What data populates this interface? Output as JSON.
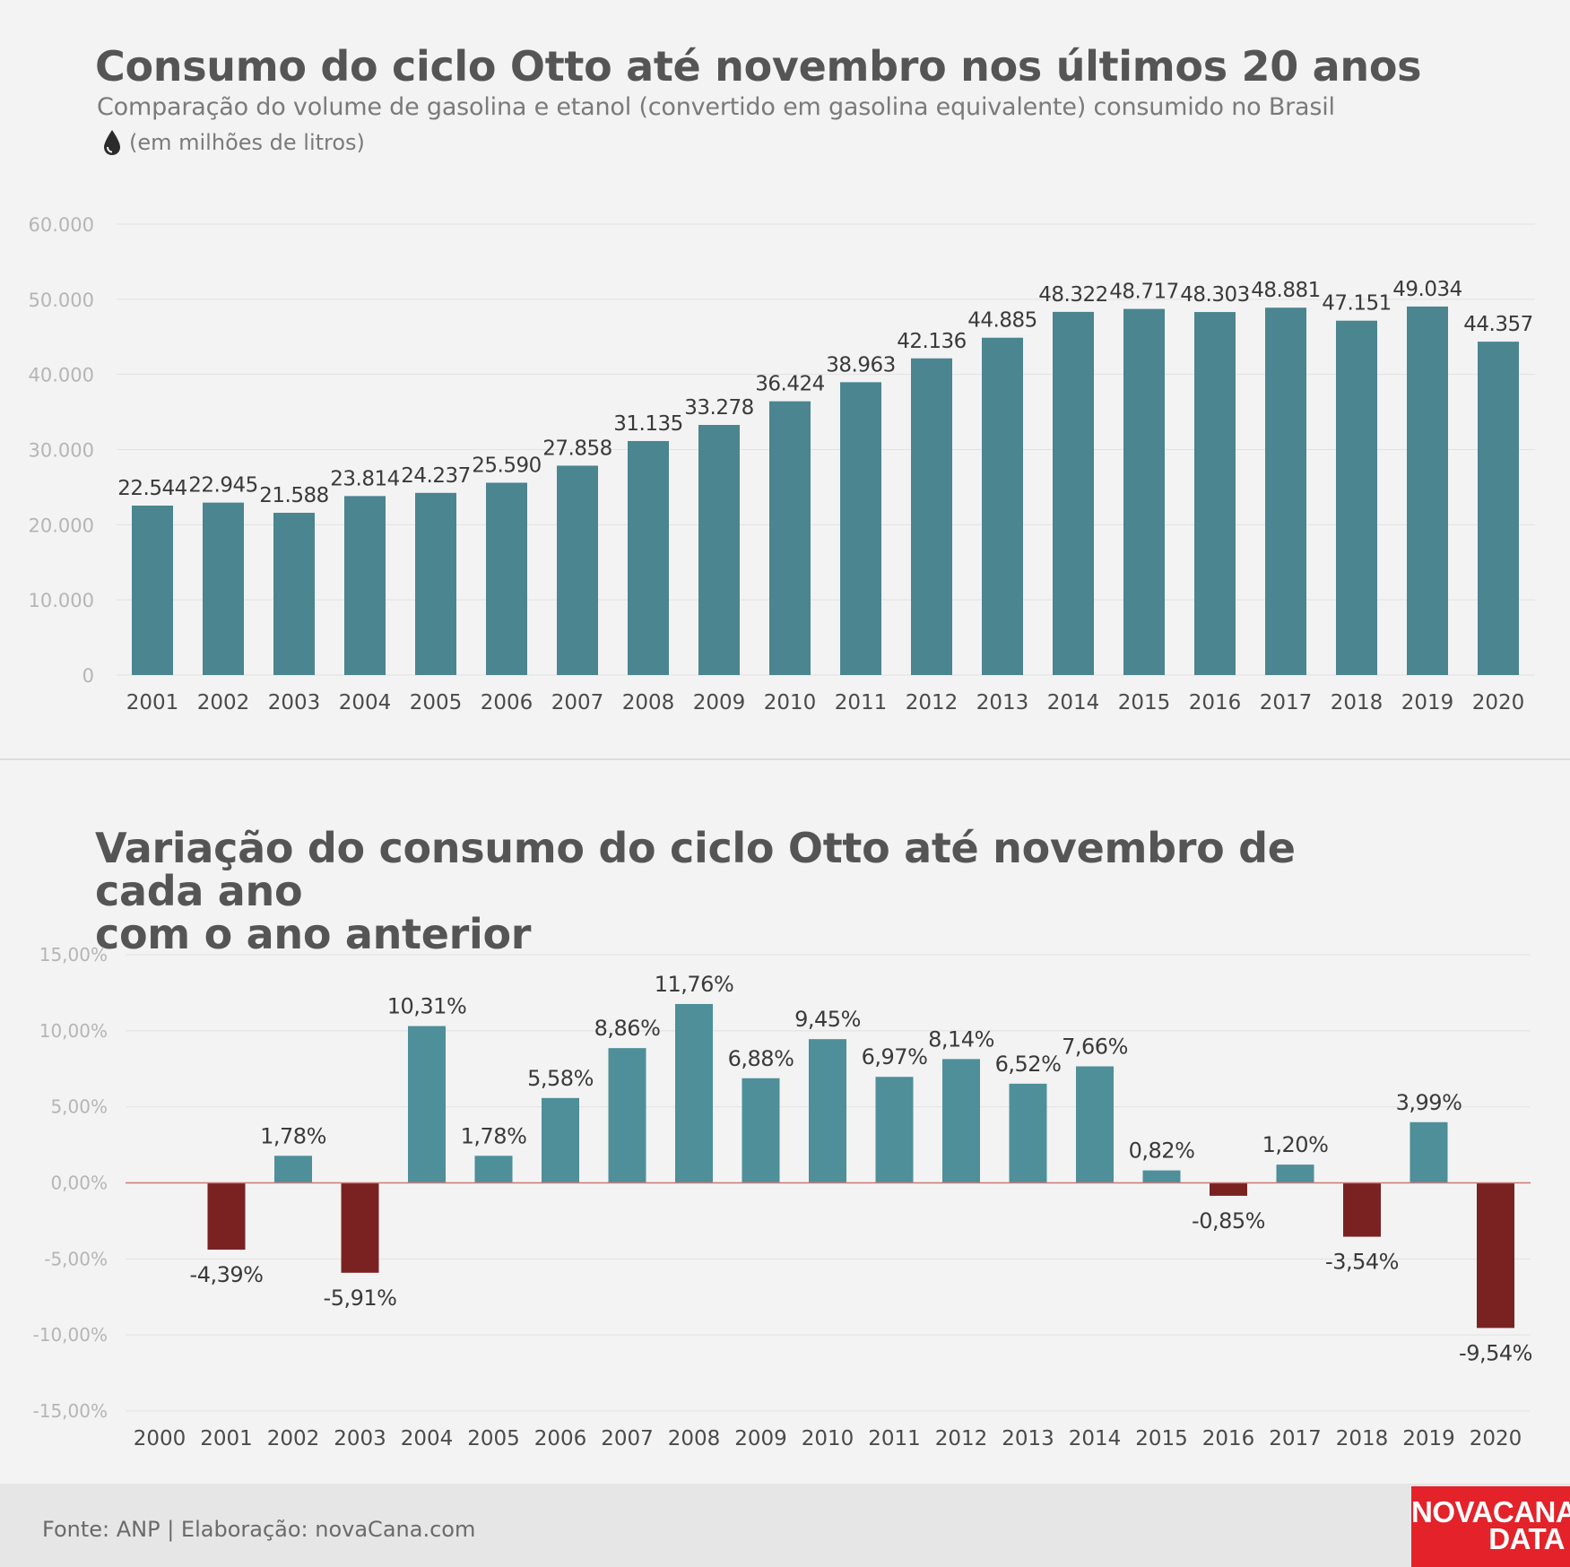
{
  "header": {
    "title": "Consumo do ciclo Otto até novembro nos últimos 20 anos",
    "subtitle": "Comparação do volume de gasolina e etanol (convertido em gasolina equivalente) consumido no Brasil",
    "unit": "(em milhões de litros)",
    "unit_icon": "drop-icon"
  },
  "section2": {
    "title_line1": "Variação do consumo do ciclo Otto até novembro de cada ano",
    "title_line2": "com o ano anterior"
  },
  "footer": {
    "source": "Fonte: ANP | Elaboração: novaCana.com",
    "logo_line1": "NOVACANA",
    "logo_line2": "DATA"
  },
  "colors": {
    "bar": "#4a8590",
    "bar_positive": "#4e8f99",
    "bar_negative": "#7a2222",
    "zero_line": "#c97a7a",
    "logo_bg": "#e3222a"
  },
  "chart_data": [
    {
      "type": "bar",
      "categories": [
        "2001",
        "2002",
        "2003",
        "2004",
        "2005",
        "2006",
        "2007",
        "2008",
        "2009",
        "2010",
        "2011",
        "2012",
        "2013",
        "2014",
        "2015",
        "2016",
        "2017",
        "2018",
        "2019",
        "2020"
      ],
      "values": [
        22544,
        22945,
        21588,
        23814,
        24237,
        25590,
        27858,
        31135,
        33278,
        36424,
        38963,
        42136,
        44885,
        48322,
        48717,
        48303,
        48881,
        47151,
        49034,
        44357
      ],
      "data_labels": [
        "22.544",
        "22.945",
        "21.588",
        "23.814",
        "24.237",
        "25.590",
        "27.858",
        "31.135",
        "33.278",
        "36.424",
        "38.963",
        "42.136",
        "44.885",
        "48.322",
        "48.717",
        "48.303",
        "48.881",
        "47.151",
        "49.034",
        "44.357"
      ],
      "yticks": [
        0,
        10000,
        20000,
        30000,
        40000,
        50000,
        60000
      ],
      "ytick_labels": [
        "0",
        "10.000",
        "20.000",
        "30.000",
        "40.000",
        "50.000",
        "60.000"
      ],
      "ylim": [
        0,
        60000
      ],
      "grid": true
    },
    {
      "type": "bar",
      "categories": [
        "2000",
        "2001",
        "2002",
        "2003",
        "2004",
        "2005",
        "2006",
        "2007",
        "2008",
        "2009",
        "2010",
        "2011",
        "2012",
        "2013",
        "2014",
        "2015",
        "2016",
        "2017",
        "2018",
        "2019",
        "2020"
      ],
      "values": [
        null,
        -4.39,
        1.78,
        -5.91,
        10.31,
        1.78,
        5.58,
        8.86,
        11.76,
        6.88,
        9.45,
        6.97,
        8.14,
        6.52,
        7.66,
        0.82,
        -0.85,
        1.2,
        -3.54,
        3.99,
        -9.54
      ],
      "data_labels": [
        "",
        "-4,39%",
        "1,78%",
        "-5,91%",
        "10,31%",
        "1,78%",
        "5,58%",
        "8,86%",
        "11,76%",
        "6,88%",
        "9,45%",
        "6,97%",
        "8,14%",
        "6,52%",
        "7,66%",
        "0,82%",
        "-0,85%",
        "1,20%",
        "-3,54%",
        "3,99%",
        "-9,54%"
      ],
      "yticks": [
        -15,
        -10,
        -5,
        0,
        5,
        10,
        15
      ],
      "ytick_labels": [
        "-15,00%",
        "-10,00%",
        "-5,00%",
        "0,00%",
        "5,00%",
        "10,00%",
        "15,00%"
      ],
      "ylim": [
        -15,
        15
      ],
      "grid": true
    }
  ]
}
